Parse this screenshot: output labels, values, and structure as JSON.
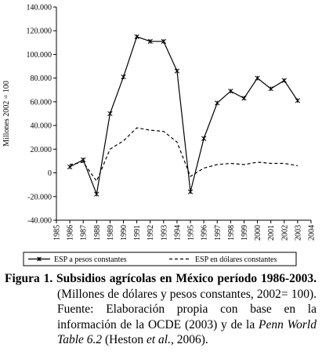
{
  "chart_data": {
    "type": "line",
    "ylabel": "Millones 2002 = 100",
    "x": [
      1986,
      1987,
      1988,
      1989,
      1990,
      1991,
      1992,
      1993,
      1994,
      1995,
      1996,
      1997,
      1998,
      1999,
      2000,
      2001,
      2002,
      2003
    ],
    "series": [
      {
        "name": "ESP a pesos constantes",
        "color": "#000000",
        "style": "solid",
        "marker": "star",
        "values": [
          5000,
          11000,
          -18000,
          50000,
          81000,
          115000,
          111000,
          111000,
          86000,
          -16000,
          29000,
          59000,
          69000,
          63000,
          80000,
          71000,
          78000,
          61000
        ]
      },
      {
        "name": "ESP en dólares constantes",
        "color": "#000000",
        "style": "dashed",
        "marker": "none",
        "values": [
          7000,
          9000,
          -7000,
          20000,
          27000,
          38000,
          36000,
          35000,
          26000,
          -3000,
          4000,
          7000,
          8000,
          7000,
          9000,
          8000,
          8000,
          6000
        ]
      }
    ],
    "xlim": [
      1985,
      2004
    ],
    "xticks": [
      1985,
      1986,
      1987,
      1988,
      1989,
      1990,
      1991,
      1992,
      1993,
      1994,
      1995,
      1996,
      1997,
      1998,
      1999,
      2000,
      2001,
      2002,
      2003,
      2004
    ],
    "ylim": [
      -40000,
      140000
    ],
    "yticks": [
      {
        "value": -40000,
        "label": "-40.000"
      },
      {
        "value": -20000,
        "label": "-20.000"
      },
      0,
      {
        "value": 20000,
        "label": "20.000"
      },
      {
        "value": 40000,
        "label": "40.000"
      },
      {
        "value": 60000,
        "label": "60.000"
      },
      {
        "value": 80000,
        "label": "80.000"
      },
      {
        "value": 100000,
        "label": "100.000"
      },
      {
        "value": 120000,
        "label": "120.000"
      },
      {
        "value": 140000,
        "label": "140.000"
      }
    ],
    "grid": false,
    "legend": "bottom"
  },
  "caption": {
    "label": "Figura 1.",
    "title": "Subsidios agrícolas en México período 1986-2003.",
    "text1": "(Millones de dólares y pesos constantes, 2002= 100). Fuente: Elaboración propia con base en la información de la OCDE (2003) y de la",
    "italic1": "Penn World Table 6.2",
    "text2": "(Heston",
    "italic2": "et al.",
    "text3": ", 2006)."
  }
}
